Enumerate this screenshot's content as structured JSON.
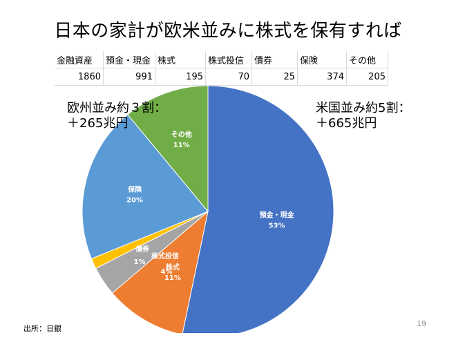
{
  "title": "日本の家計が欧米並みに株式を保有すれば",
  "table": {
    "headers": [
      "金融資産",
      "預金・現金",
      "株式",
      "株式投信",
      "債券",
      "保険",
      "その他"
    ],
    "values": [
      "1860",
      "991",
      "195",
      "70",
      "25",
      "374",
      "205"
    ]
  },
  "annotations": {
    "left": "欧州並み約３割：\n＋265兆円",
    "right": "米国並み約5割：\n＋665兆円"
  },
  "source": "出所：日銀",
  "page_number": "19",
  "chart_data": {
    "type": "pie",
    "slices": [
      {
        "label": "預金・現金",
        "value": 991,
        "percent_label": "53%",
        "color": "#4472C4"
      },
      {
        "label": "株式",
        "value": 195,
        "percent_label": "11%",
        "color": "#ED7D31"
      },
      {
        "label": "株式投信",
        "value": 70,
        "percent_label": "4%",
        "color": "#A5A5A5"
      },
      {
        "label": "債券",
        "value": 25,
        "percent_label": "1%",
        "color": "#FFC000"
      },
      {
        "label": "保険",
        "value": 374,
        "percent_label": "20%",
        "color": "#5B9BD5"
      },
      {
        "label": "その他",
        "value": 205,
        "percent_label": "11%",
        "color": "#70AD47"
      }
    ],
    "start_angle": "12 o'clock",
    "direction": "clockwise"
  }
}
